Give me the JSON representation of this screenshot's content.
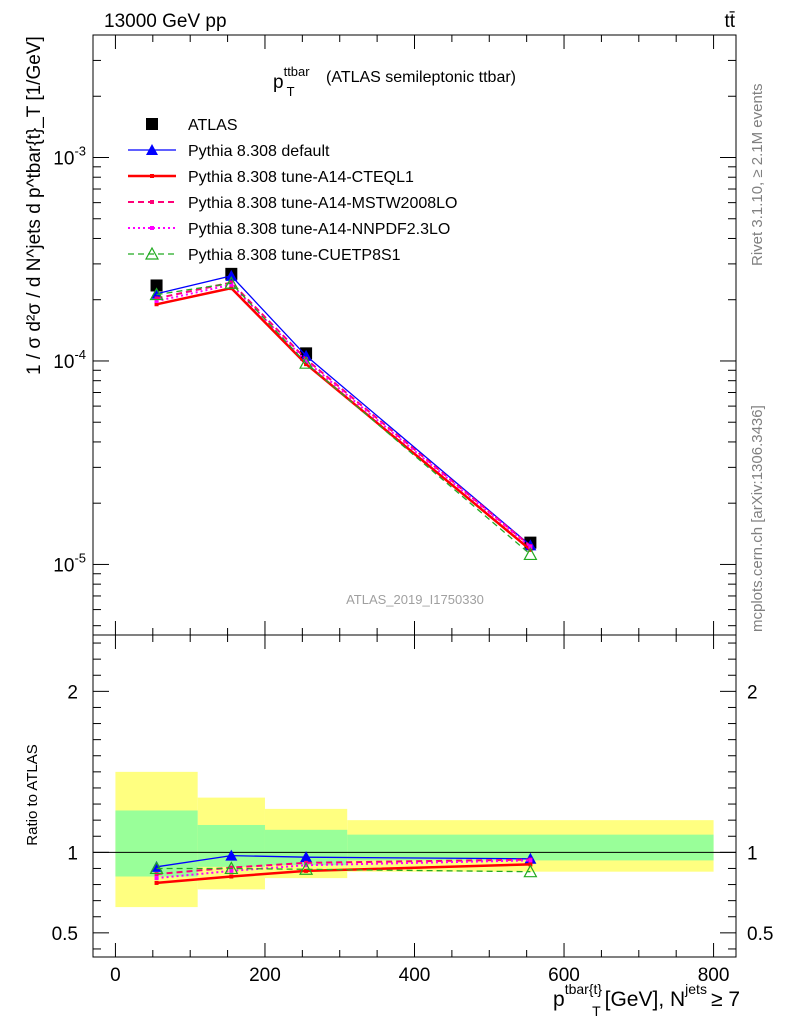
{
  "header": {
    "energy_label": "13000 GeV pp",
    "process_label": "tt̄"
  },
  "side": {
    "rivet_label": "Rivet 3.1.10, ≥ 2.1M events",
    "source_label": "mcplots.cern.ch [arXiv:1306.3436]"
  },
  "chart_data": [
    {
      "type": "line",
      "title_main": "p",
      "title_sup": "ttbar",
      "title_sub": "T",
      "title_rest": "(ATLAS semileptonic ttbar)",
      "watermark": "ATLAS_2019_I1750330",
      "ylabel": "1 / σ d²σ / d N^jets d p^tbar{t}_T [1/GeV]",
      "yscale": "log",
      "ylim": [
        4.5e-06,
        0.004
      ],
      "xlim": [
        -30,
        830
      ],
      "y_tick_labels": [
        {
          "value": 0.001,
          "base": "10",
          "exp": "-3"
        },
        {
          "value": 0.0001,
          "base": "10",
          "exp": "-4"
        },
        {
          "value": 1e-05,
          "base": "10",
          "exp": "-5"
        }
      ],
      "legend_position": "top-left",
      "series": [
        {
          "name": "ATLAS",
          "color": "#000000",
          "style": "marker-square",
          "x": [
            55,
            155,
            255,
            555
          ],
          "y": [
            0.000235,
            0.000268,
            0.000109,
            1.28e-05
          ]
        },
        {
          "name": "Pythia 8.308 default",
          "color": "#0000ff",
          "style": "solid-triangle",
          "x": [
            55,
            155,
            255,
            555
          ],
          "y": [
            0.000214,
            0.000262,
            0.000106,
            1.24e-05
          ]
        },
        {
          "name": "Pythia 8.308 tune-A14-CTEQL1",
          "color": "#ff0000",
          "style": "solid-thick",
          "x": [
            55,
            155,
            255,
            555
          ],
          "y": [
            0.00019,
            0.000228,
            9.65e-05,
            1.18e-05
          ]
        },
        {
          "name": "Pythia 8.308 tune-A14-MSTW2008LO",
          "color": "#ff0077",
          "style": "dashed",
          "x": [
            55,
            155,
            255,
            555
          ],
          "y": [
            0.000203,
            0.000243,
            0.000102,
            1.23e-05
          ]
        },
        {
          "name": "Pythia 8.308 tune-A14-NNPDF2.3LO",
          "color": "#ff00ff",
          "style": "dotted",
          "x": [
            55,
            155,
            255,
            555
          ],
          "y": [
            0.000197,
            0.000237,
            0.0001,
            1.22e-05
          ]
        },
        {
          "name": "Pythia 8.308 tune-CUETP8S1",
          "color": "#22aa22",
          "style": "dashed-open-triangle",
          "x": [
            55,
            155,
            255,
            555
          ],
          "y": [
            0.000212,
            0.000241,
            9.75e-05,
            1.12e-05
          ]
        }
      ]
    },
    {
      "type": "line",
      "ylabel": "Ratio to ATLAS",
      "xlabel_main": "p",
      "xlabel_sup": "tbar{t}",
      "xlabel_sub": "T",
      "xlabel_units": "[GeV], N",
      "xlabel_sup2": "jets",
      "xlabel_tail": "≥ 7",
      "ylim": [
        0.35,
        2.35
      ],
      "xlim": [
        -30,
        830
      ],
      "y_ticks": [
        0.5,
        1,
        2
      ],
      "y_tick_labels": [
        "0.5",
        "1",
        "2"
      ],
      "x_ticks": [
        0,
        200,
        400,
        600,
        800
      ],
      "x_tick_labels": [
        "0",
        "200",
        "400",
        "600",
        "800"
      ],
      "reference_line": 1,
      "bins": [
        [
          0,
          110
        ],
        [
          110,
          200
        ],
        [
          200,
          310
        ],
        [
          310,
          800
        ]
      ],
      "uncertainty_bands": [
        {
          "name": "total",
          "color": "#ffff80",
          "low": [
            0.66,
            0.77,
            0.84,
            0.88
          ],
          "high": [
            1.5,
            1.34,
            1.27,
            1.2
          ]
        },
        {
          "name": "stat",
          "color": "#99ff99",
          "low": [
            0.85,
            0.91,
            0.92,
            0.95
          ],
          "high": [
            1.26,
            1.17,
            1.14,
            1.11
          ]
        }
      ],
      "series": [
        {
          "name": "Pythia 8.308 default",
          "color": "#0000ff",
          "style": "solid-triangle",
          "x": [
            55,
            155,
            255,
            555
          ],
          "y": [
            0.91,
            0.98,
            0.97,
            0.96
          ]
        },
        {
          "name": "Pythia 8.308 tune-A14-CTEQL1",
          "color": "#ff0000",
          "style": "solid-thick",
          "x": [
            55,
            155,
            255,
            555
          ],
          "y": [
            0.81,
            0.85,
            0.885,
            0.925
          ]
        },
        {
          "name": "Pythia 8.308 tune-A14-MSTW2008LO",
          "color": "#ff0077",
          "style": "dashed",
          "x": [
            55,
            155,
            255,
            555
          ],
          "y": [
            0.865,
            0.905,
            0.935,
            0.955
          ]
        },
        {
          "name": "Pythia 8.308 tune-A14-NNPDF2.3LO",
          "color": "#ff00ff",
          "style": "dotted",
          "x": [
            55,
            155,
            255,
            555
          ],
          "y": [
            0.84,
            0.885,
            0.92,
            0.95
          ]
        },
        {
          "name": "Pythia 8.308 tune-CUETP8S1",
          "color": "#22aa22",
          "style": "dashed-open-triangle",
          "x": [
            55,
            155,
            255,
            555
          ],
          "y": [
            0.9,
            0.9,
            0.895,
            0.88
          ]
        }
      ]
    }
  ]
}
